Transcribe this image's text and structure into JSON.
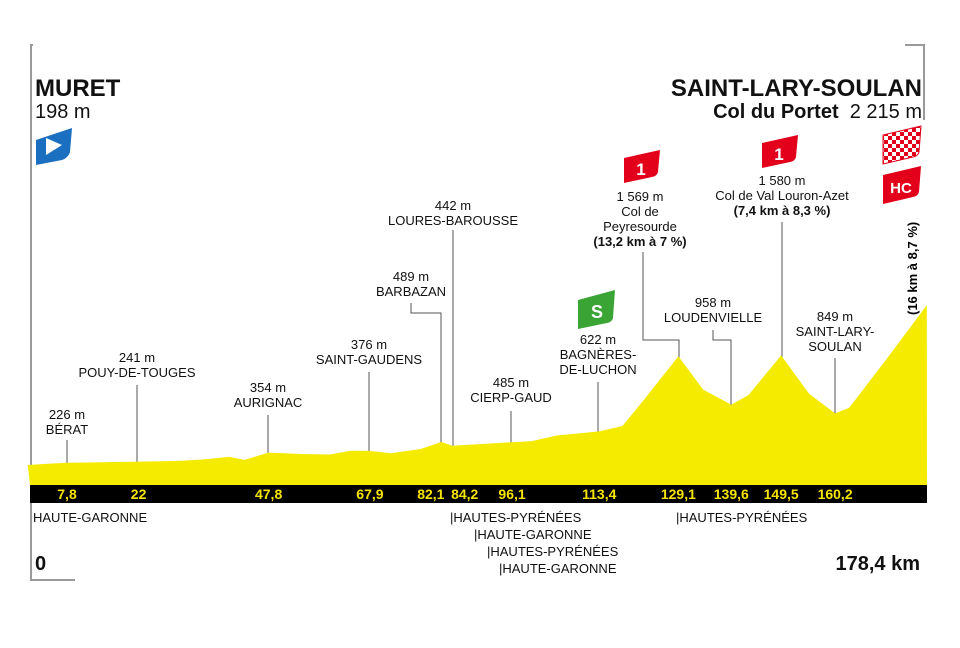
{
  "chart_data": {
    "type": "area",
    "title": "Muret - Saint-Lary-Soulan Col du Portet",
    "xlabel": "km",
    "ylabel": "m",
    "xlim": [
      0,
      178.4
    ],
    "profile": [
      [
        0,
        198
      ],
      [
        4,
        215
      ],
      [
        7.8,
        226
      ],
      [
        15,
        232
      ],
      [
        22,
        241
      ],
      [
        30,
        250
      ],
      [
        35,
        268
      ],
      [
        40,
        300
      ],
      [
        43,
        262
      ],
      [
        47.8,
        354
      ],
      [
        55,
        335
      ],
      [
        60,
        330
      ],
      [
        64,
        378
      ],
      [
        67.9,
        376
      ],
      [
        72,
        345
      ],
      [
        78,
        400
      ],
      [
        82.1,
        489
      ],
      [
        84.2,
        442
      ],
      [
        96.1,
        485
      ],
      [
        100,
        500
      ],
      [
        105,
        570
      ],
      [
        113.4,
        622
      ],
      [
        118,
        690
      ],
      [
        122,
        1000
      ],
      [
        129.1,
        1569
      ],
      [
        134,
        1150
      ],
      [
        139.6,
        958
      ],
      [
        143,
        1080
      ],
      [
        149.5,
        1580
      ],
      [
        155,
        1100
      ],
      [
        160.2,
        849
      ],
      [
        163,
        920
      ],
      [
        170,
        1500
      ],
      [
        178.4,
        2215
      ]
    ],
    "start": {
      "name": "MURET",
      "elev": "198 m"
    },
    "finish": {
      "name": "SAINT-LARY-SOULAN",
      "sub": "Col du Portet",
      "elev": "2 215 m",
      "climb": "(16 km à 8,7 %)",
      "cat": "HC"
    },
    "km_ticks": [
      "7,8",
      "22",
      "47,8",
      "67,9",
      "82,1",
      "84,2",
      "96,1",
      "113,4",
      "129,1",
      "139,6",
      "149,5",
      "160,2"
    ],
    "km_values": [
      7.8,
      22,
      47.8,
      67.9,
      82.1,
      84.2,
      96.1,
      113.4,
      129.1,
      139.6,
      149.5,
      160.2
    ],
    "points": [
      {
        "elev": "226 m",
        "name": "BÉRAT"
      },
      {
        "elev": "241 m",
        "name": "POUY-DE-TOUGES"
      },
      {
        "elev": "354 m",
        "name": "AURIGNAC"
      },
      {
        "elev": "376 m",
        "name": "SAINT-GAUDENS"
      },
      {
        "elev": "489 m",
        "name": "BARBAZAN"
      },
      {
        "elev": "442 m",
        "name": "LOURES-BAROUSSE"
      },
      {
        "elev": "485 m",
        "name": "CIERP-GAUD"
      },
      {
        "elev": "622 m",
        "name": "BAGNÈRES-",
        "name2": "DE-LUCHON"
      },
      {
        "elev": "1 569 m",
        "name": "Col de",
        "name2": "Peyresourde",
        "climb": "(13,2 km à 7 %)",
        "cat": "1"
      },
      {
        "elev": "958 m",
        "name": "LOUDENVIELLE"
      },
      {
        "elev": "1 580 m",
        "name": "Col de Val Louron-Azet",
        "climb": "(7,4 km à 8,3 %)",
        "cat": "1"
      },
      {
        "elev": "849 m",
        "name": "SAINT-LARY-",
        "name2": "SOULAN"
      }
    ],
    "departments": [
      "HAUTE-GARONNE",
      "|HAUTES-PYRÉNÉES",
      "|HAUTE-GARONNE",
      "|HAUTES-PYRÉNÉES",
      "|HAUTE-GARONNE",
      "|HAUTES-PYRÉNÉES"
    ],
    "sprint": "S",
    "axis_start": "0",
    "axis_end": "178,4 km",
    "colors": {
      "profile": "#f5eb00",
      "bar": "#000000",
      "climb": "#e2001a",
      "sprint": "#3aa435",
      "start": "#1a6fc0"
    }
  }
}
